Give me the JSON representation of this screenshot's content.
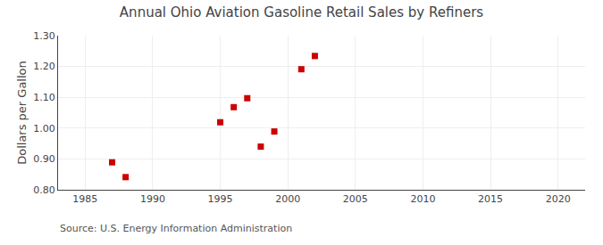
{
  "chart_data": {
    "type": "scatter",
    "title": "Annual Ohio Aviation Gasoline Retail Sales by Refiners",
    "ylabel": "Dollars per Gallon",
    "annotations": [
      "Source: U.S. Energy Information Administration"
    ],
    "x": [
      1987,
      1988,
      1995,
      1996,
      1997,
      1998,
      1999,
      2001,
      2002
    ],
    "values": [
      0.889,
      0.841,
      1.019,
      1.068,
      1.097,
      0.94,
      0.989,
      1.191,
      1.234
    ],
    "color": "#cc0000",
    "marker": "square",
    "xlim": [
      1983,
      2022
    ],
    "ylim": [
      0.8,
      1.3
    ],
    "xticks": [
      1985,
      1990,
      1995,
      2000,
      2005,
      2010,
      2015,
      2020
    ],
    "yticks": [
      {
        "value": 0.8,
        "label": "0.80"
      },
      {
        "value": 0.9,
        "label": "0.90"
      },
      {
        "value": 1.0,
        "label": "1.00"
      },
      {
        "value": 1.1,
        "label": "1.10"
      },
      {
        "value": 1.2,
        "label": "1.20"
      },
      {
        "value": 1.3,
        "label": "1.30"
      }
    ],
    "grid": true
  }
}
